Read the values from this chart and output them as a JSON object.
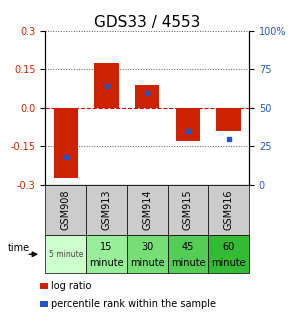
{
  "title": "GDS33 / 4553",
  "samples": [
    "GSM908",
    "GSM913",
    "GSM914",
    "GSM915",
    "GSM916"
  ],
  "log_ratios": [
    -0.275,
    0.175,
    0.09,
    -0.13,
    -0.09
  ],
  "percentile_ranks": [
    18,
    64,
    60,
    35,
    30
  ],
  "ylim": [
    -0.3,
    0.3
  ],
  "yticks_left": [
    -0.3,
    -0.15,
    0.0,
    0.15,
    0.3
  ],
  "yticks_right": [
    0,
    25,
    50,
    75,
    100
  ],
  "bar_color": "#cc2200",
  "dot_color": "#2255cc",
  "hline_color": "#cc0000",
  "dot_color_grid": "#777777",
  "bg_color": "#ffffff",
  "title_fontsize": 11,
  "tick_fontsize": 7,
  "sample_label_fontsize": 7,
  "time_label_fontsize": 7,
  "legend_fontsize": 7,
  "time_colors": [
    "#ccffcc",
    "#99ee99",
    "#77dd77",
    "#55cc55",
    "#33bb33"
  ],
  "time_labels_line1": [
    "5 minute",
    "15",
    "30",
    "45",
    "60"
  ],
  "time_labels_line2": [
    "",
    "minute",
    "minute",
    "minute",
    "minute"
  ]
}
